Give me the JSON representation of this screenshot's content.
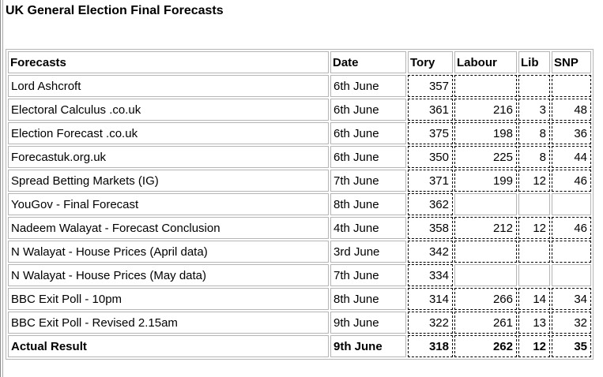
{
  "page": {
    "title": "UK General Election Final Forecasts"
  },
  "chart_data": {
    "type": "table",
    "title": "UK General Election Final Forecasts",
    "columns": [
      "Forecasts",
      "Date",
      "Tory",
      "Labour",
      "Lib",
      "SNP"
    ],
    "rows": [
      {
        "forecast": "Lord Ashcroft",
        "date": "6th June",
        "tory": "357",
        "labour": "",
        "lib": "",
        "snp": "",
        "bold": false
      },
      {
        "forecast": "Electoral Calculus .co.uk",
        "date": "6th June",
        "tory": "361",
        "labour": "216",
        "lib": "3",
        "snp": "48",
        "bold": false
      },
      {
        "forecast": "Election Forecast .co.uk",
        "date": "6th June",
        "tory": "375",
        "labour": "198",
        "lib": "8",
        "snp": "36",
        "bold": false
      },
      {
        "forecast": "Forecastuk.org.uk",
        "date": "6th June",
        "tory": "350",
        "labour": "225",
        "lib": "8",
        "snp": "44",
        "bold": false
      },
      {
        "forecast": "Spread Betting Markets (IG)",
        "date": "7th June",
        "tory": "371",
        "labour": "199",
        "lib": "12",
        "snp": "46",
        "bold": false
      },
      {
        "forecast": "YouGov - Final Forecast",
        "date": "8th June",
        "tory": "362",
        "labour": null,
        "lib": null,
        "snp": null,
        "bold": false
      },
      {
        "forecast": "Nadeem Walayat - Forecast Conclusion",
        "date": "4th June",
        "tory": "358",
        "labour": "212",
        "lib": "12",
        "snp": "46",
        "bold": false
      },
      {
        "forecast": "N Walayat - House Prices (April data)",
        "date": "3rd June",
        "tory": "342",
        "labour": "",
        "lib": "",
        "snp": "",
        "bold": false
      },
      {
        "forecast": "N Walayat - House Prices (May data)",
        "date": "7th June",
        "tory": "334",
        "labour": null,
        "lib": null,
        "snp": null,
        "bold": false
      },
      {
        "forecast": "BBC Exit Poll - 10pm",
        "date": "8th June",
        "tory": "314",
        "labour": "266",
        "lib": "14",
        "snp": "34",
        "bold": false
      },
      {
        "forecast": "BBC Exit Poll - Revised 2.15am",
        "date": "9th June",
        "tory": "322",
        "labour": "261",
        "lib": "13",
        "snp": "32",
        "bold": false
      },
      {
        "forecast": "Actual Result",
        "date": "9th June",
        "tory": "318",
        "labour": "262",
        "lib": "12",
        "snp": "35",
        "bold": true
      }
    ],
    "colors": {
      "background": "#ffffff",
      "text": "#000000",
      "grid_border": "#b5b5b5",
      "data_cell_border": "#000000"
    }
  }
}
